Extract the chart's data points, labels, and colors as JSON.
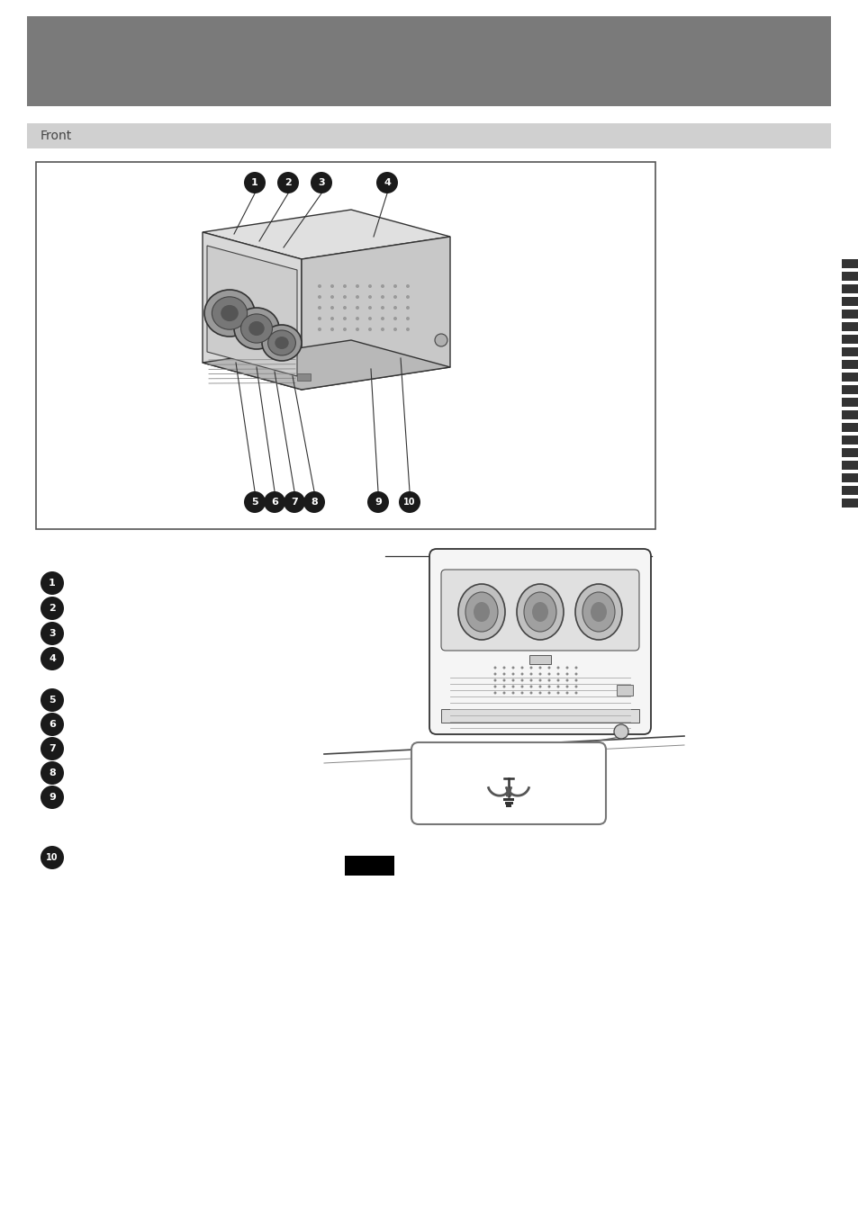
{
  "title_bar_color": "#7a7a7a",
  "title_bar_text": "",
  "section_bar_color": "#d0d0d0",
  "section_bar_text": "Front",
  "background_color": "#ffffff",
  "bullet_bg": "#1a1a1a",
  "bullet_text_color": "#ffffff",
  "barcode_color": "#333333",
  "diagram_border_color": "#555555",
  "separator_line_color": "#333333",
  "red_box_color": "#000000",
  "callout_box_border": "#888888",
  "projector_light": "#e8e8e8",
  "projector_mid": "#cccccc",
  "projector_dark": "#aaaaaa",
  "line_color": "#444444"
}
